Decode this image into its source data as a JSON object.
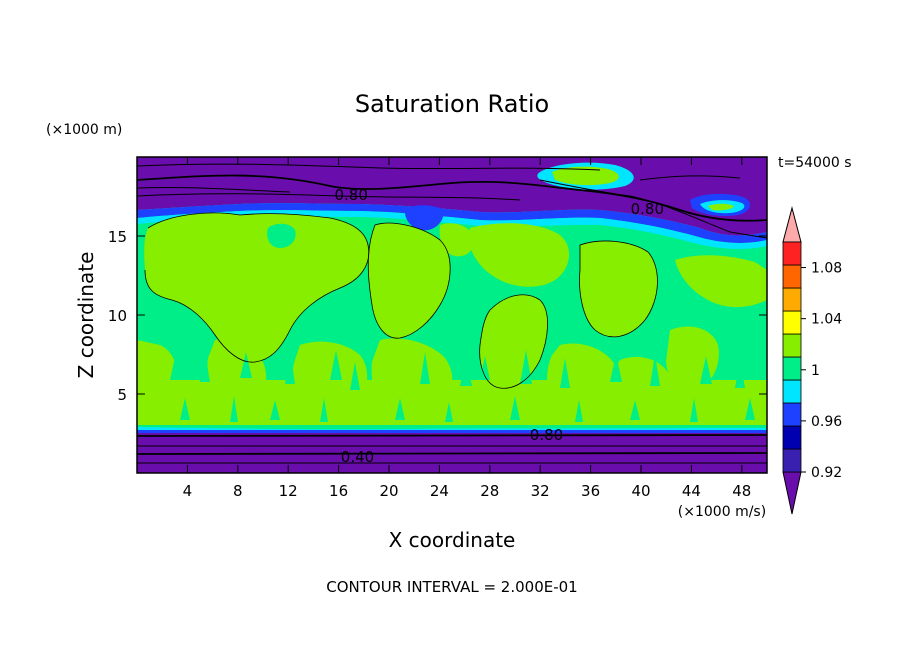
{
  "chart_data": {
    "type": "heatmap",
    "title": "Saturation Ratio",
    "xlabel": "X coordinate",
    "ylabel": "Z coordinate",
    "x_unit": "(×1000 m/s)",
    "y_unit": "(×1000 m)",
    "time_label": "t=54000 s",
    "footer": "CONTOUR INTERVAL = 2.000E-01",
    "xlim": [
      0,
      50
    ],
    "ylim": [
      0,
      20
    ],
    "x_ticks": [
      4,
      8,
      12,
      16,
      20,
      24,
      28,
      32,
      36,
      40,
      44,
      48
    ],
    "y_ticks": [
      5,
      10,
      15
    ],
    "contour_labels": [
      {
        "text": "0.80",
        "x": 17,
        "y": 17.6
      },
      {
        "text": "0.80",
        "x": 40.5,
        "y": 16.7
      },
      {
        "text": "0.80",
        "x": 32.5,
        "y": 2.4
      },
      {
        "text": "0.40",
        "x": 17.5,
        "y": 1.0
      }
    ],
    "colorbar": {
      "levels": [
        0.92,
        0.94,
        0.96,
        0.98,
        1,
        1.02,
        1.04,
        1.06,
        1.08,
        1.1
      ],
      "colors": [
        "#6a0dad",
        "#3a20b0",
        "#0000b0",
        "#1e40ff",
        "#00e5ff",
        "#00ee88",
        "#88ee00",
        "#ffff00",
        "#ffaa00",
        "#ff6600",
        "#ff2222",
        "#ffaaaa"
      ],
      "tick_labels": [
        "0.92",
        "0.96",
        "1",
        "1.04",
        "1.08"
      ],
      "tick_values": [
        0.92,
        0.96,
        1,
        1.04,
        1.08
      ]
    }
  }
}
